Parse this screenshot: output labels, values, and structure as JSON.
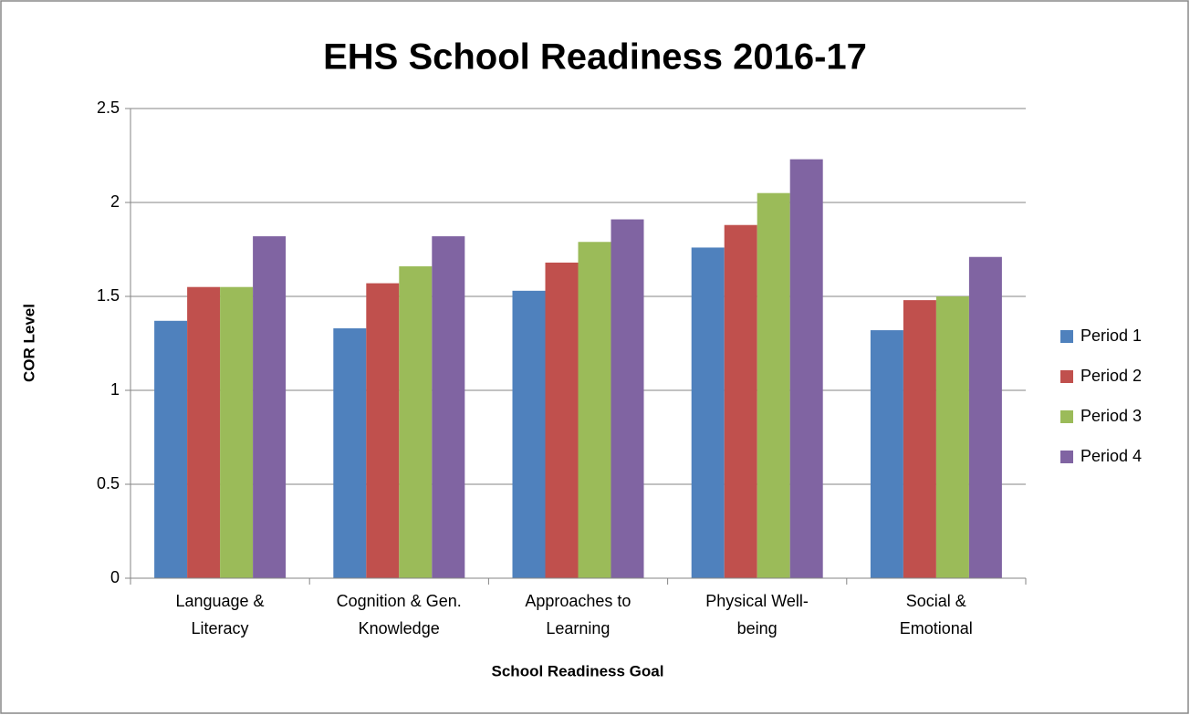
{
  "chart_data": {
    "type": "bar",
    "title": "EHS School Readiness 2016-17",
    "x_label": "School Readiness Goal",
    "y_label": "COR Level",
    "categories": [
      "Language &\nLiteracy",
      "Cognition & Gen.\nKnowledge",
      "Approaches to\nLearning",
      "Physical Well-\nbeing",
      "Social &\nEmotional"
    ],
    "series": [
      {
        "name": "Period 1",
        "color": "#4f81bd",
        "values": [
          1.37,
          1.33,
          1.53,
          1.76,
          1.32
        ]
      },
      {
        "name": "Period 2",
        "color": "#c0504d",
        "values": [
          1.55,
          1.57,
          1.68,
          1.88,
          1.48
        ]
      },
      {
        "name": "Period 3",
        "color": "#9bbb59",
        "values": [
          1.55,
          1.66,
          1.79,
          2.05,
          1.5
        ]
      },
      {
        "name": "Period 4",
        "color": "#8064a2",
        "values": [
          1.82,
          1.82,
          1.91,
          2.23,
          1.71
        ]
      }
    ],
    "ylim": [
      0,
      2.5
    ],
    "yticks": [
      0,
      0.5,
      1,
      1.5,
      2,
      2.5
    ],
    "grid": true,
    "legend": "right"
  }
}
